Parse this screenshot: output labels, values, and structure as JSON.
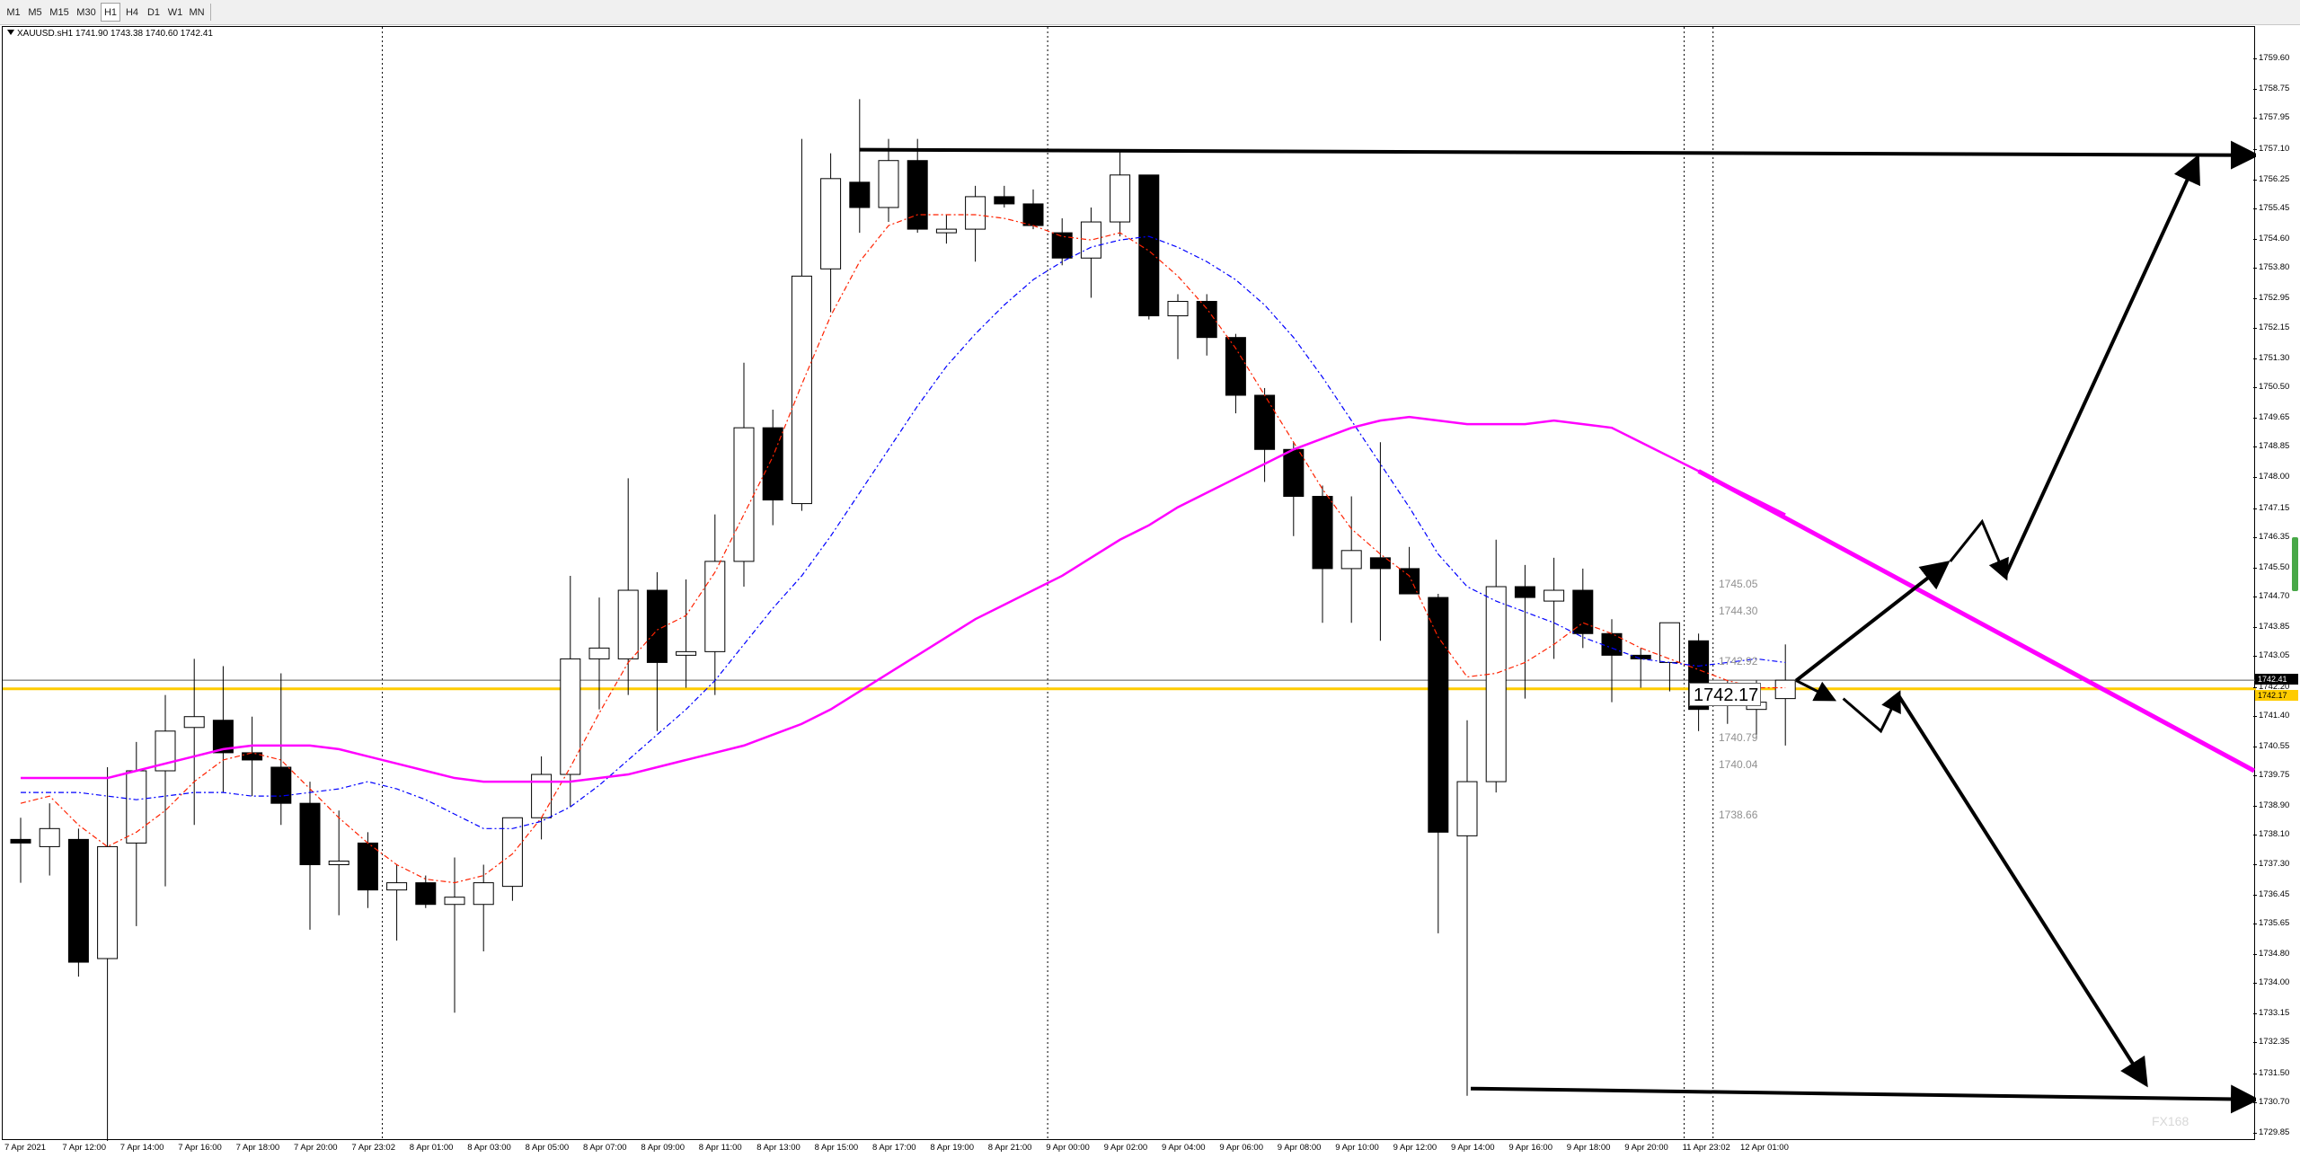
{
  "toolbar": {
    "timeframes": [
      {
        "label": "M1",
        "active": false
      },
      {
        "label": "M5",
        "active": false
      },
      {
        "label": "M15",
        "active": false
      },
      {
        "label": "M30",
        "active": false
      },
      {
        "label": "H1",
        "active": true
      },
      {
        "label": "H4",
        "active": false
      },
      {
        "label": "D1",
        "active": false
      },
      {
        "label": "W1",
        "active": false
      },
      {
        "label": "MN",
        "active": false
      }
    ]
  },
  "symbol_info": "XAUUSD.sH1  1741.90 1743.38 1740.60 1742.41",
  "current_price_label": "1742.17",
  "axis_badges": {
    "current": "1742.41",
    "bid": "1742.17"
  },
  "watermark": "FX168",
  "colors": {
    "bull": "#ffffff",
    "bear": "#000000",
    "ma_slow": "#ff00ff",
    "ma_fast": "#ff2200",
    "ma_mid": "#0000ff",
    "h_line": "#ffcc00"
  },
  "chart_data": {
    "type": "candlestick",
    "symbol": "XAUUSD.s",
    "timeframe": "H1",
    "ylim": [
      1729.65,
      1760.5
    ],
    "price_ticks": [
      "1759.60",
      "1758.75",
      "1757.95",
      "1757.10",
      "1756.25",
      "1755.45",
      "1754.60",
      "1753.80",
      "1752.95",
      "1752.15",
      "1751.30",
      "1750.50",
      "1749.65",
      "1748.85",
      "1748.00",
      "1747.15",
      "1746.35",
      "1745.50",
      "1744.70",
      "1743.85",
      "1743.05",
      "1742.20",
      "1741.40",
      "1740.55",
      "1739.75",
      "1738.90",
      "1738.10",
      "1737.30",
      "1736.45",
      "1735.65",
      "1734.80",
      "1734.00",
      "1733.15",
      "1732.35",
      "1731.50",
      "1730.70",
      "1729.85"
    ],
    "time_labels": [
      {
        "i": 0,
        "label": "7 Apr 2021"
      },
      {
        "i": 2,
        "label": "7 Apr 12:00"
      },
      {
        "i": 4,
        "label": "7 Apr 14:00"
      },
      {
        "i": 6,
        "label": "7 Apr 16:00"
      },
      {
        "i": 8,
        "label": "7 Apr 18:00"
      },
      {
        "i": 10,
        "label": "7 Apr 20:00"
      },
      {
        "i": 12,
        "label": "7 Apr 23:02"
      },
      {
        "i": 14,
        "label": "8 Apr 01:00"
      },
      {
        "i": 16,
        "label": "8 Apr 03:00"
      },
      {
        "i": 18,
        "label": "8 Apr 05:00"
      },
      {
        "i": 20,
        "label": "8 Apr 07:00"
      },
      {
        "i": 22,
        "label": "8 Apr 09:00"
      },
      {
        "i": 24,
        "label": "8 Apr 11:00"
      },
      {
        "i": 26,
        "label": "8 Apr 13:00"
      },
      {
        "i": 28,
        "label": "8 Apr 15:00"
      },
      {
        "i": 30,
        "label": "8 Apr 17:00"
      },
      {
        "i": 32,
        "label": "8 Apr 19:00"
      },
      {
        "i": 34,
        "label": "8 Apr 21:00"
      },
      {
        "i": 36,
        "label": "9 Apr 00:00"
      },
      {
        "i": 38,
        "label": "9 Apr 02:00"
      },
      {
        "i": 40,
        "label": "9 Apr 04:00"
      },
      {
        "i": 42,
        "label": "9 Apr 06:00"
      },
      {
        "i": 44,
        "label": "9 Apr 08:00"
      },
      {
        "i": 46,
        "label": "9 Apr 10:00"
      },
      {
        "i": 48,
        "label": "9 Apr 12:00"
      },
      {
        "i": 50,
        "label": "9 Apr 14:00"
      },
      {
        "i": 52,
        "label": "9 Apr 16:00"
      },
      {
        "i": 54,
        "label": "9 Apr 18:00"
      },
      {
        "i": 56,
        "label": "9 Apr 20:00"
      },
      {
        "i": 58,
        "label": "11 Apr 23:02"
      },
      {
        "i": 60,
        "label": "12 Apr 01:00"
      }
    ],
    "candles": [
      {
        "o": 1738.0,
        "h": 1738.6,
        "l": 1736.8,
        "c": 1737.9
      },
      {
        "o": 1737.8,
        "h": 1739.0,
        "l": 1737.0,
        "c": 1738.3
      },
      {
        "o": 1738.0,
        "h": 1738.3,
        "l": 1734.2,
        "c": 1734.6
      },
      {
        "o": 1734.7,
        "h": 1740.0,
        "l": 1729.5,
        "c": 1737.8
      },
      {
        "o": 1737.9,
        "h": 1740.7,
        "l": 1735.6,
        "c": 1739.9
      },
      {
        "o": 1739.9,
        "h": 1742.0,
        "l": 1736.7,
        "c": 1741.0
      },
      {
        "o": 1741.1,
        "h": 1743.0,
        "l": 1738.4,
        "c": 1741.4
      },
      {
        "o": 1741.3,
        "h": 1742.8,
        "l": 1739.3,
        "c": 1740.4
      },
      {
        "o": 1740.4,
        "h": 1741.4,
        "l": 1739.2,
        "c": 1740.2
      },
      {
        "o": 1740.0,
        "h": 1742.6,
        "l": 1738.4,
        "c": 1739.0
      },
      {
        "o": 1739.0,
        "h": 1739.6,
        "l": 1735.5,
        "c": 1737.3
      },
      {
        "o": 1737.3,
        "h": 1738.8,
        "l": 1735.9,
        "c": 1737.4
      },
      {
        "o": 1737.9,
        "h": 1738.2,
        "l": 1736.1,
        "c": 1736.6
      },
      {
        "o": 1736.6,
        "h": 1737.3,
        "l": 1735.2,
        "c": 1736.8
      },
      {
        "o": 1736.8,
        "h": 1737.0,
        "l": 1736.1,
        "c": 1736.2
      },
      {
        "o": 1736.2,
        "h": 1737.5,
        "l": 1733.2,
        "c": 1736.4
      },
      {
        "o": 1736.2,
        "h": 1737.3,
        "l": 1734.9,
        "c": 1736.8
      },
      {
        "o": 1736.7,
        "h": 1738.6,
        "l": 1736.3,
        "c": 1738.6
      },
      {
        "o": 1738.6,
        "h": 1740.3,
        "l": 1738.0,
        "c": 1739.8
      },
      {
        "o": 1739.8,
        "h": 1745.3,
        "l": 1738.9,
        "c": 1743.0
      },
      {
        "o": 1743.0,
        "h": 1744.7,
        "l": 1741.6,
        "c": 1743.3
      },
      {
        "o": 1743.0,
        "h": 1748.0,
        "l": 1742.0,
        "c": 1744.9
      },
      {
        "o": 1744.9,
        "h": 1745.4,
        "l": 1741.0,
        "c": 1742.9
      },
      {
        "o": 1743.1,
        "h": 1745.2,
        "l": 1742.2,
        "c": 1743.2
      },
      {
        "o": 1743.2,
        "h": 1747.0,
        "l": 1742.0,
        "c": 1745.7
      },
      {
        "o": 1745.7,
        "h": 1751.2,
        "l": 1745.0,
        "c": 1749.4
      },
      {
        "o": 1749.4,
        "h": 1749.9,
        "l": 1746.7,
        "c": 1747.4
      },
      {
        "o": 1747.3,
        "h": 1757.4,
        "l": 1747.1,
        "c": 1753.6
      },
      {
        "o": 1753.8,
        "h": 1757.0,
        "l": 1752.6,
        "c": 1756.3
      },
      {
        "o": 1756.2,
        "h": 1758.5,
        "l": 1754.8,
        "c": 1755.5
      },
      {
        "o": 1755.5,
        "h": 1757.4,
        "l": 1755.1,
        "c": 1756.8
      },
      {
        "o": 1756.8,
        "h": 1757.4,
        "l": 1754.8,
        "c": 1754.9
      },
      {
        "o": 1754.8,
        "h": 1755.3,
        "l": 1754.5,
        "c": 1754.9
      },
      {
        "o": 1754.9,
        "h": 1756.1,
        "l": 1754.0,
        "c": 1755.8
      },
      {
        "o": 1755.8,
        "h": 1756.1,
        "l": 1755.5,
        "c": 1755.6
      },
      {
        "o": 1755.6,
        "h": 1756.0,
        "l": 1754.9,
        "c": 1755.0
      },
      {
        "o": 1754.8,
        "h": 1755.2,
        "l": 1753.9,
        "c": 1754.1
      },
      {
        "o": 1754.1,
        "h": 1755.5,
        "l": 1753.0,
        "c": 1755.1
      },
      {
        "o": 1755.1,
        "h": 1757.1,
        "l": 1754.7,
        "c": 1756.4
      },
      {
        "o": 1756.4,
        "h": 1756.4,
        "l": 1752.4,
        "c": 1752.5
      },
      {
        "o": 1752.5,
        "h": 1753.1,
        "l": 1751.3,
        "c": 1752.9
      },
      {
        "o": 1752.9,
        "h": 1753.1,
        "l": 1751.4,
        "c": 1751.9
      },
      {
        "o": 1751.9,
        "h": 1752.0,
        "l": 1749.8,
        "c": 1750.3
      },
      {
        "o": 1750.3,
        "h": 1750.5,
        "l": 1747.9,
        "c": 1748.8
      },
      {
        "o": 1748.8,
        "h": 1749.0,
        "l": 1746.4,
        "c": 1747.5
      },
      {
        "o": 1747.5,
        "h": 1747.8,
        "l": 1744.0,
        "c": 1745.5
      },
      {
        "o": 1745.5,
        "h": 1747.5,
        "l": 1744.0,
        "c": 1746.0
      },
      {
        "o": 1745.8,
        "h": 1749.0,
        "l": 1743.5,
        "c": 1745.5
      },
      {
        "o": 1745.5,
        "h": 1746.1,
        "l": 1744.8,
        "c": 1744.8
      },
      {
        "o": 1744.7,
        "h": 1744.8,
        "l": 1735.4,
        "c": 1738.2
      },
      {
        "o": 1738.1,
        "h": 1741.3,
        "l": 1730.9,
        "c": 1739.6
      },
      {
        "o": 1739.6,
        "h": 1746.3,
        "l": 1739.3,
        "c": 1745.0
      },
      {
        "o": 1745.0,
        "h": 1745.6,
        "l": 1741.9,
        "c": 1744.7
      },
      {
        "o": 1744.6,
        "h": 1745.8,
        "l": 1743.0,
        "c": 1744.9
      },
      {
        "o": 1744.9,
        "h": 1745.5,
        "l": 1743.3,
        "c": 1743.7
      },
      {
        "o": 1743.7,
        "h": 1744.1,
        "l": 1741.8,
        "c": 1743.1
      },
      {
        "o": 1743.1,
        "h": 1743.3,
        "l": 1742.2,
        "c": 1743.0
      },
      {
        "o": 1742.9,
        "h": 1744.0,
        "l": 1742.1,
        "c": 1744.0
      },
      {
        "o": 1743.5,
        "h": 1743.7,
        "l": 1741.0,
        "c": 1741.6
      },
      {
        "o": 1741.9,
        "h": 1742.4,
        "l": 1741.2,
        "c": 1741.9
      },
      {
        "o": 1741.6,
        "h": 1742.4,
        "l": 1740.8,
        "c": 1741.8
      },
      {
        "o": 1741.9,
        "h": 1743.4,
        "l": 1740.6,
        "c": 1742.41
      }
    ],
    "ma_slow": [
      1739.7,
      1739.7,
      1739.7,
      1739.7,
      1739.9,
      1740.1,
      1740.3,
      1740.5,
      1740.6,
      1740.6,
      1740.6,
      1740.5,
      1740.3,
      1740.1,
      1739.9,
      1739.7,
      1739.6,
      1739.6,
      1739.6,
      1739.6,
      1739.7,
      1739.8,
      1740.0,
      1740.2,
      1740.4,
      1740.6,
      1740.9,
      1741.2,
      1741.6,
      1742.1,
      1742.6,
      1743.1,
      1743.6,
      1744.1,
      1744.5,
      1744.9,
      1745.3,
      1745.8,
      1746.3,
      1746.7,
      1747.2,
      1747.6,
      1748.0,
      1748.4,
      1748.8,
      1749.1,
      1749.4,
      1749.6,
      1749.7,
      1749.6,
      1749.5,
      1749.5,
      1749.5,
      1749.6,
      1749.5,
      1749.4,
      1749.0,
      1748.6,
      1748.2,
      1747.8,
      1747.4,
      1747.0
    ],
    "ma_fast": [
      1739.0,
      1739.2,
      1738.4,
      1737.8,
      1738.2,
      1738.8,
      1739.6,
      1740.2,
      1740.4,
      1740.2,
      1739.4,
      1738.6,
      1737.9,
      1737.3,
      1736.9,
      1736.8,
      1737.0,
      1737.6,
      1738.6,
      1740.0,
      1741.5,
      1742.9,
      1743.8,
      1744.2,
      1745.4,
      1747.0,
      1748.6,
      1750.6,
      1752.5,
      1754.0,
      1755.0,
      1755.3,
      1755.3,
      1755.3,
      1755.2,
      1755.0,
      1754.7,
      1754.6,
      1754.8,
      1754.3,
      1753.6,
      1752.7,
      1751.6,
      1750.3,
      1749.0,
      1747.7,
      1746.6,
      1745.9,
      1745.3,
      1743.6,
      1742.5,
      1742.6,
      1742.9,
      1743.4,
      1744.0,
      1743.7,
      1743.3,
      1743.0,
      1742.7,
      1742.4,
      1742.2,
      1742.2
    ],
    "ma_mid": [
      1739.3,
      1739.3,
      1739.3,
      1739.2,
      1739.1,
      1739.2,
      1739.3,
      1739.3,
      1739.2,
      1739.2,
      1739.3,
      1739.4,
      1739.6,
      1739.4,
      1739.1,
      1738.7,
      1738.3,
      1738.3,
      1738.5,
      1738.9,
      1739.5,
      1740.2,
      1740.9,
      1741.6,
      1742.4,
      1743.4,
      1744.4,
      1745.3,
      1746.4,
      1747.6,
      1748.8,
      1750.0,
      1751.1,
      1752.0,
      1752.8,
      1753.5,
      1754.0,
      1754.4,
      1754.6,
      1754.7,
      1754.4,
      1754.0,
      1753.5,
      1752.8,
      1751.9,
      1750.8,
      1749.6,
      1748.4,
      1747.2,
      1745.9,
      1745.0,
      1744.6,
      1744.3,
      1744.0,
      1743.6,
      1743.3,
      1743.0,
      1742.9,
      1742.8,
      1742.9,
      1743.0,
      1742.9
    ],
    "h_levels": [
      {
        "price": 1742.41,
        "color": "#555555"
      },
      {
        "price": 1742.17,
        "color": "#ffcc00"
      }
    ],
    "vertical_lines_at_index": [
      12.5,
      35.5,
      57.5,
      58.5
    ],
    "level_labels": [
      "1745.05",
      "1744.30",
      "1742.92",
      "1740.79",
      "1740.04",
      "1738.66"
    ],
    "level_label_prices": [
      1745.05,
      1744.3,
      1742.92,
      1740.79,
      1740.04,
      1738.66
    ]
  }
}
